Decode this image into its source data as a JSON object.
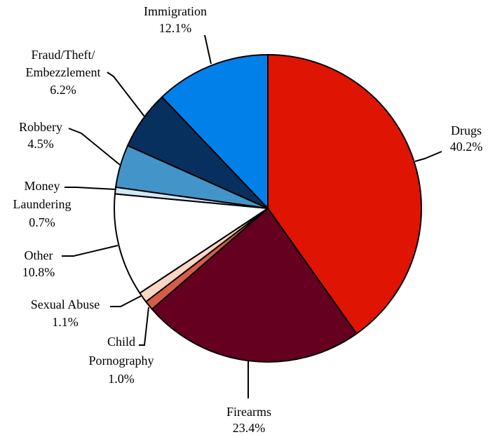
{
  "chart_data": {
    "type": "pie",
    "title": "",
    "start_angle_deg": 0,
    "direction": "clockwise",
    "slices": [
      {
        "name": "Drugs",
        "value": 40.2,
        "label": "40.2%",
        "color": "#e01402"
      },
      {
        "name": "Firearms",
        "value": 23.4,
        "label": "23.4%",
        "color": "#650020"
      },
      {
        "name": "Child Pornography",
        "value": 1.0,
        "label": "1.0%",
        "color": "#d65c49"
      },
      {
        "name": "Sexual Abuse",
        "value": 1.1,
        "label": "1.1%",
        "color": "#fbd6c4"
      },
      {
        "name": "Other",
        "value": 10.8,
        "label": "10.8%",
        "color": "#ffffff"
      },
      {
        "name": "Money Laundering",
        "value": 0.7,
        "label": "0.7%",
        "color": "#d3e6f3"
      },
      {
        "name": "Robbery",
        "value": 4.5,
        "label": "4.5%",
        "color": "#4394c9"
      },
      {
        "name": "Fraud/Theft/Embezzlement",
        "value": 6.2,
        "label": "6.2%",
        "color": "#08305e"
      },
      {
        "name": "Immigration",
        "value": 12.1,
        "label": "12.1%",
        "color": "#0280ea"
      }
    ]
  },
  "labels": {
    "drugs": {
      "l1": "Drugs",
      "l2": "40.2%"
    },
    "firearms": {
      "l1": "Firearms",
      "l2": "23.4%"
    },
    "child_porn": {
      "l1": "Child",
      "l2": "Pornography",
      "l3": "1.0%"
    },
    "sexual_abuse": {
      "l1": "Sexual Abuse",
      "l2": "1.1%"
    },
    "other": {
      "l1": "Other",
      "l2": "10.8%"
    },
    "money_laundering": {
      "l1": "Money",
      "l2": "Laundering",
      "l3": "0.7%"
    },
    "robbery": {
      "l1": "Robbery",
      "l2": "4.5%"
    },
    "fraud": {
      "l1": "Fraud/Theft/",
      "l2": "Embezzlement",
      "l3": "6.2%"
    },
    "immigration": {
      "l1": "Immigration",
      "l2": "12.1%"
    }
  }
}
